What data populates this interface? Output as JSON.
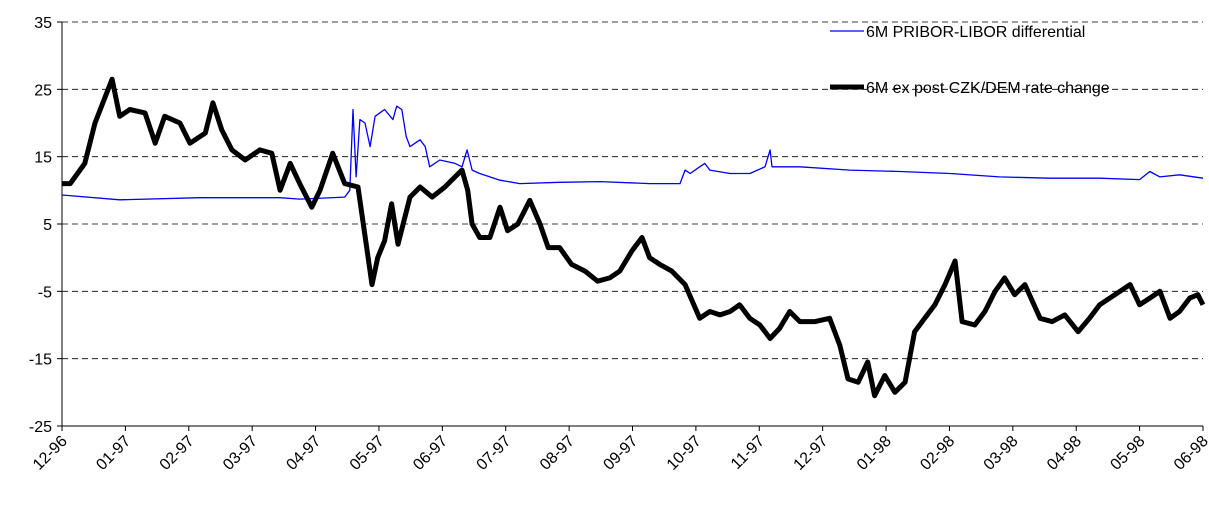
{
  "chart_data": {
    "type": "line",
    "series": [
      {
        "name": "6M PRIBOR-LIBOR differential",
        "color": "#0000ff",
        "width": 1.3,
        "x": [
          0,
          0.91,
          2.18,
          3.44,
          3.75,
          4.46,
          4.54,
          4.59,
          4.64,
          4.7,
          4.78,
          4.86,
          4.94,
          5.09,
          5.22,
          5.28,
          5.36,
          5.43,
          5.49,
          5.65,
          5.73,
          5.8,
          5.96,
          6.2,
          6.31,
          6.39,
          6.47,
          6.59,
          6.75,
          6.91,
          7.22,
          7.85,
          8.49,
          9.27,
          9.75,
          9.83,
          9.91,
          10.06,
          10.14,
          10.22,
          10.54,
          10.85,
          11.09,
          11.17,
          11.2,
          11.64,
          12.43,
          13.22,
          14.01,
          14.79,
          15.58,
          16.37,
          17.0,
          17.16,
          17.32,
          17.63,
          18
        ],
        "values": [
          9.3,
          8.6,
          8.9,
          8.9,
          8.7,
          9.0,
          10,
          22,
          12,
          20.5,
          20,
          16.5,
          21,
          22,
          20.5,
          22.5,
          22,
          18,
          16.5,
          17.5,
          16.5,
          13.5,
          14.5,
          14,
          13.5,
          16,
          13,
          12.5,
          12,
          11.5,
          11,
          11.2,
          11.3,
          11,
          11,
          13,
          12.5,
          13.5,
          14,
          13,
          12.5,
          12.5,
          13.5,
          16,
          13.5,
          13.5,
          13,
          12.8,
          12.5,
          12,
          11.8,
          11.8,
          11.6,
          12.8,
          12,
          12.3,
          11.8
        ]
      },
      {
        "name": "6M ex post CZK/DEM rate change",
        "color": "#000000",
        "width": 5,
        "x": [
          0,
          0.13,
          0.36,
          0.52,
          0.79,
          0.91,
          1.07,
          1.31,
          1.47,
          1.62,
          1.86,
          2.02,
          2.26,
          2.38,
          2.52,
          2.68,
          2.89,
          3.12,
          3.31,
          3.44,
          3.6,
          3.75,
          3.94,
          4.07,
          4.27,
          4.46,
          4.67,
          4.89,
          4.98,
          5.09,
          5.2,
          5.3,
          5.49,
          5.65,
          5.84,
          6.04,
          6.2,
          6.31,
          6.4,
          6.47,
          6.59,
          6.75,
          6.91,
          7.03,
          7.19,
          7.38,
          7.54,
          7.67,
          7.85,
          8.04,
          8.25,
          8.45,
          8.64,
          8.8,
          8.99,
          9.15,
          9.27,
          9.43,
          9.62,
          9.83,
          10.06,
          10.22,
          10.38,
          10.54,
          10.69,
          10.85,
          11.01,
          11.17,
          11.32,
          11.48,
          11.64,
          11.88,
          12.11,
          12.27,
          12.4,
          12.56,
          12.71,
          12.82,
          12.98,
          13.14,
          13.3,
          13.45,
          13.61,
          13.77,
          13.93,
          14.09,
          14.2,
          14.4,
          14.56,
          14.72,
          14.87,
          15.03,
          15.19,
          15.43,
          15.62,
          15.82,
          16.03,
          16.21,
          16.37,
          16.53,
          16.69,
          16.85,
          17.0,
          17.16,
          17.32,
          17.48,
          17.63,
          17.79,
          17.92,
          18
        ],
        "values": [
          11,
          11,
          14,
          20,
          26.5,
          21,
          22,
          21.5,
          17,
          21,
          20,
          17,
          18.5,
          23,
          19,
          16,
          14.5,
          16,
          15.5,
          10,
          14,
          11,
          7.5,
          10,
          15.5,
          11,
          10.5,
          -4,
          0,
          2.5,
          8,
          2,
          9,
          10.5,
          9,
          10.5,
          12,
          13,
          10,
          5,
          3,
          3,
          7.5,
          4,
          5,
          8.5,
          5,
          1.5,
          1.5,
          -1,
          -2,
          -3.5,
          -3,
          -2,
          1,
          3,
          0,
          -1,
          -2,
          -4,
          -9,
          -8,
          -8.5,
          -8,
          -7,
          -9,
          -10,
          -12,
          -10.5,
          -8,
          -9.5,
          -9.5,
          -9,
          -13,
          -18,
          -18.5,
          -15.5,
          -20.5,
          -17.5,
          -20,
          -18.5,
          -11,
          -9,
          -7,
          -4,
          -0.5,
          -9.5,
          -10,
          -8,
          -5,
          -3,
          -5.5,
          -4,
          -9,
          -9.5,
          -8.5,
          -11,
          -9,
          -7,
          -6,
          -5,
          -4,
          -7,
          -6,
          -5,
          -9,
          -8,
          -6,
          -5.5,
          -7
        ]
      }
    ],
    "xlim": [
      0,
      18
    ],
    "xticks": [
      {
        "value": 0,
        "label": "12-96"
      },
      {
        "value": 1,
        "label": "01-97"
      },
      {
        "value": 2,
        "label": "02-97"
      },
      {
        "value": 3,
        "label": "03-97"
      },
      {
        "value": 4,
        "label": "04-97"
      },
      {
        "value": 5,
        "label": "05-97"
      },
      {
        "value": 6,
        "label": "06-97"
      },
      {
        "value": 7,
        "label": "07-97"
      },
      {
        "value": 8,
        "label": "08-97"
      },
      {
        "value": 9,
        "label": "09-97"
      },
      {
        "value": 10,
        "label": "10-97"
      },
      {
        "value": 11,
        "label": "11-97"
      },
      {
        "value": 12,
        "label": "12-97"
      },
      {
        "value": 13,
        "label": "01-98"
      },
      {
        "value": 14,
        "label": "02-98"
      },
      {
        "value": 15,
        "label": "03-98"
      },
      {
        "value": 16,
        "label": "04-98"
      },
      {
        "value": 17,
        "label": "05-98"
      },
      {
        "value": 18,
        "label": "06-98"
      }
    ],
    "ylim": [
      -25,
      35
    ],
    "yticks": [
      -25,
      -15,
      -5,
      5,
      15,
      25,
      35
    ],
    "grid": true
  }
}
